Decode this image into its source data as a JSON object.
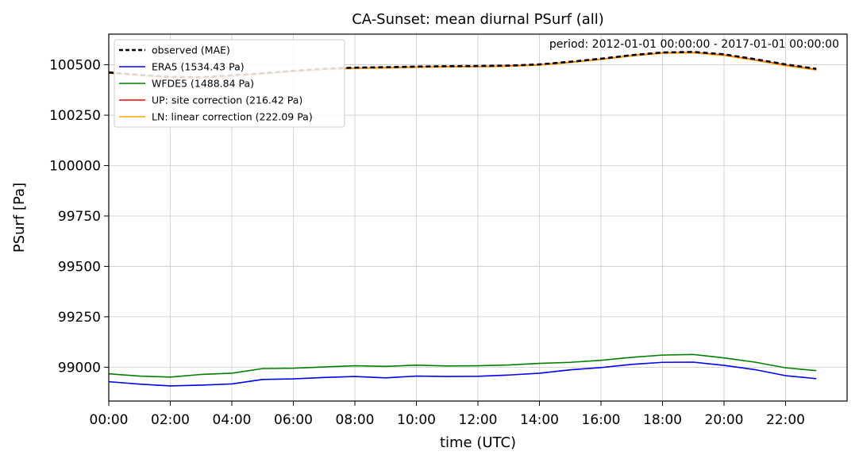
{
  "chart_data": {
    "type": "line",
    "title": "CA-Sunset: mean diurnal PSurf (all)",
    "xlabel": "time (UTC)",
    "ylabel": "PSurf [Pa]",
    "annotation": "period: 2012-01-01 00:00:00 - 2017-01-01 00:00:00",
    "xlim": [
      0,
      24
    ],
    "ylim": [
      98832,
      100652
    ],
    "x_ticks": [
      0,
      2,
      4,
      6,
      8,
      10,
      12,
      14,
      16,
      18,
      20,
      22
    ],
    "x_tick_labels": [
      "00:00",
      "02:00",
      "04:00",
      "06:00",
      "08:00",
      "10:00",
      "12:00",
      "14:00",
      "16:00",
      "18:00",
      "20:00",
      "22:00"
    ],
    "y_ticks": [
      99000,
      99250,
      99500,
      99750,
      100000,
      100250,
      100500
    ],
    "y_tick_labels": [
      "99000",
      "99250",
      "99500",
      "99750",
      "100000",
      "100250",
      "100500"
    ],
    "grid": true,
    "legend_position": "top-left",
    "x": [
      0,
      1,
      2,
      3,
      4,
      5,
      6,
      7,
      8,
      9,
      10,
      11,
      12,
      13,
      14,
      15,
      16,
      17,
      18,
      19,
      20,
      21,
      22,
      23
    ],
    "series": [
      {
        "name": "observed (MAE)",
        "color": "#000000",
        "style": "dashed",
        "values": [
          100462,
          100450,
          100440,
          100438,
          100448,
          100458,
          100470,
          100480,
          100486,
          100488,
          100491,
          100493,
          100494,
          100496,
          100502,
          100515,
          100530,
          100548,
          100561,
          100564,
          100552,
          100528,
          100502,
          100480
        ]
      },
      {
        "name": "ERA5 (1534.43 Pa)",
        "color": "#0000ff",
        "style": "solid",
        "values": [
          98928,
          98916,
          98907,
          98911,
          98917,
          98939,
          98942,
          98949,
          98954,
          98947,
          98956,
          98954,
          98955,
          98961,
          98970,
          98987,
          98998,
          99014,
          99024,
          99025,
          99009,
          98988,
          98958,
          98943
        ]
      },
      {
        "name": "WFDE5 (1488.84 Pa)",
        "color": "#008000",
        "style": "solid",
        "values": [
          98967,
          98956,
          98951,
          98964,
          98970,
          98993,
          98995,
          99001,
          99007,
          99004,
          99010,
          99006,
          99007,
          99011,
          99019,
          99024,
          99034,
          99049,
          99060,
          99063,
          99046,
          99025,
          98997,
          98983
        ]
      },
      {
        "name": "UP: site correction (216.42 Pa)",
        "color": "#ff0000",
        "style": "solid",
        "values": [
          100460,
          100448,
          100438,
          100436,
          100446,
          100456,
          100468,
          100478,
          100484,
          100486,
          100489,
          100491,
          100492,
          100494,
          100500,
          100513,
          100528,
          100546,
          100559,
          100561,
          100549,
          100525,
          100499,
          100477
        ]
      },
      {
        "name": "LN: linear correction (222.09 Pa)",
        "color": "#ffa500",
        "style": "solid",
        "values": [
          100458,
          100446,
          100436,
          100434,
          100444,
          100454,
          100466,
          100476,
          100482,
          100484,
          100487,
          100489,
          100490,
          100492,
          100498,
          100511,
          100526,
          100544,
          100557,
          100559,
          100546,
          100522,
          100495,
          100474
        ]
      }
    ]
  }
}
